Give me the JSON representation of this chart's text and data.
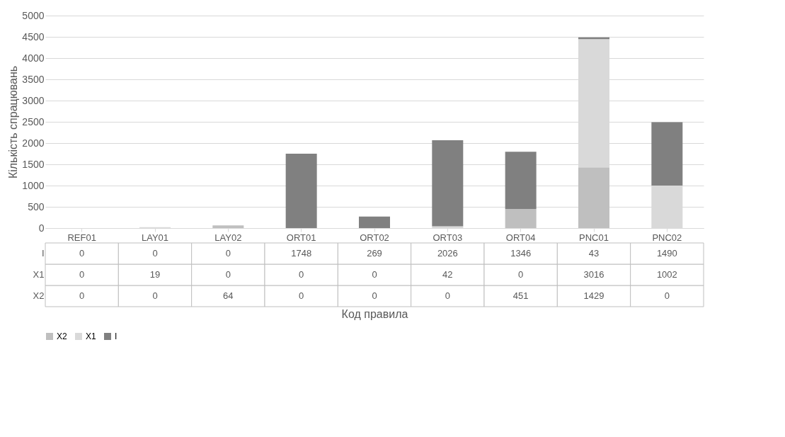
{
  "chart_data": {
    "type": "bar",
    "stacked": true,
    "annotations": [
      "Код правила"
    ],
    "ylabel": "Кількість спрацювань",
    "categories": [
      "REF01",
      "LAY01",
      "LAY02",
      "ORT01",
      "ORT02",
      "ORT03",
      "ORT04",
      "PNC01",
      "PNC02"
    ],
    "series": [
      {
        "name": "X2",
        "color": "#bfbfbf",
        "values": [
          0,
          0,
          64,
          0,
          0,
          0,
          451,
          1429,
          0
        ]
      },
      {
        "name": "X1",
        "color": "#d9d9d9",
        "values": [
          0,
          19,
          0,
          0,
          0,
          42,
          0,
          3016,
          1002
        ]
      },
      {
        "name": "I",
        "color": "#808080",
        "values": [
          0,
          0,
          0,
          1748,
          269,
          2026,
          1346,
          43,
          1490
        ]
      }
    ],
    "ylim": [
      0,
      5000
    ],
    "yticks": [
      0,
      500,
      1000,
      1500,
      2000,
      2500,
      3000,
      3500,
      4000,
      4500,
      5000
    ],
    "grid": "y",
    "legend": "bottom",
    "data_labels": true
  }
}
